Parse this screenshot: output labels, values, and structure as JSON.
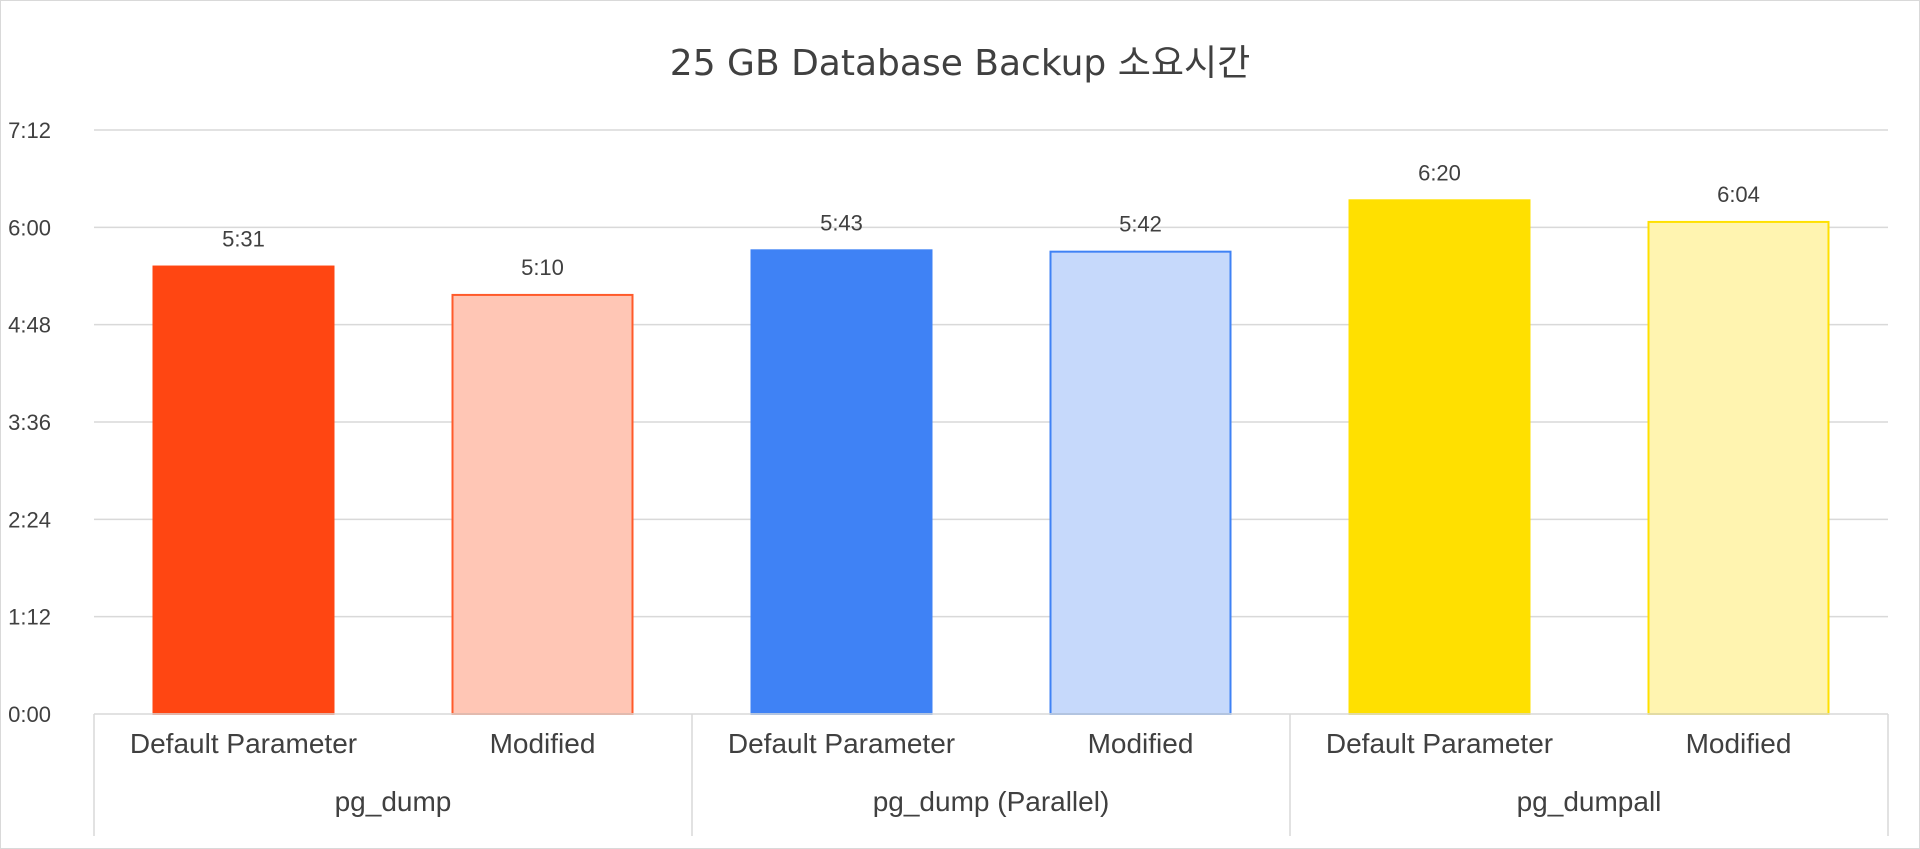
{
  "chart_data": {
    "type": "bar",
    "title": "25 GB Database Backup 소요시간",
    "xlabel": "",
    "ylabel": "",
    "y_unit": "minutes:seconds",
    "ylim_seconds": [
      0,
      432
    ],
    "y_ticks": [
      "0:00",
      "1:12",
      "2:24",
      "3:36",
      "4:48",
      "6:00",
      "7:12"
    ],
    "y_tick_seconds": [
      0,
      72,
      144,
      216,
      288,
      360,
      432
    ],
    "grid": true,
    "legend": "none",
    "groups": [
      {
        "name": "pg_dump",
        "bars": [
          {
            "category": "Default Parameter",
            "label": "5:31",
            "seconds": 331,
            "fill": "#ff4612",
            "stroke": "#ff4612"
          },
          {
            "category": "Modified",
            "label": "5:10",
            "seconds": 310,
            "fill": "#ffc6b5",
            "stroke": "#ff5a2a"
          }
        ]
      },
      {
        "name": "pg_dump (Parallel)",
        "bars": [
          {
            "category": "Default Parameter",
            "label": "5:43",
            "seconds": 343,
            "fill": "#3f82f5",
            "stroke": "#3f82f5"
          },
          {
            "category": "Modified",
            "label": "5:42",
            "seconds": 342,
            "fill": "#c6d9fb",
            "stroke": "#3f82f5"
          }
        ]
      },
      {
        "name": "pg_dumpall",
        "bars": [
          {
            "category": "Default Parameter",
            "label": "6:20",
            "seconds": 380,
            "fill": "#ffe000",
            "stroke": "#ffe000"
          },
          {
            "category": "Modified",
            "label": "6:04",
            "seconds": 364,
            "fill": "#fff4b0",
            "stroke": "#ffe000"
          }
        ]
      }
    ]
  }
}
